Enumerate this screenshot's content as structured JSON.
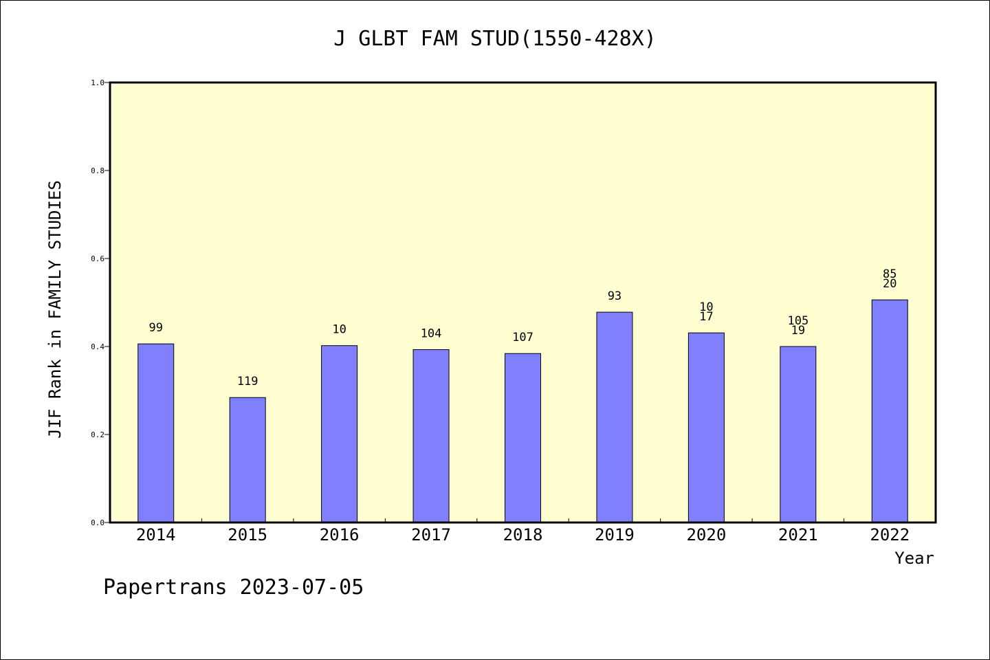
{
  "chart_data": {
    "type": "bar",
    "title": "J GLBT FAM STUD(1550-428X)",
    "xlabel": "Year",
    "ylabel": "JIF Rank in FAMILY STUDIES",
    "ylim": [
      0,
      1.0
    ],
    "yticks": [
      "0.0",
      "0.2",
      "0.4",
      "0.6",
      "0.8",
      "1.0"
    ],
    "categories": [
      "2014",
      "2015",
      "2016",
      "2017",
      "2018",
      "2019",
      "2020",
      "2021",
      "2022"
    ],
    "values": [
      0.406,
      0.284,
      0.402,
      0.393,
      0.384,
      0.478,
      0.431,
      0.4,
      0.506
    ],
    "labels": [
      [
        "99"
      ],
      [
        "119"
      ],
      [
        "10"
      ],
      [
        "104"
      ],
      [
        "107"
      ],
      [
        "93"
      ],
      [
        "10",
        "17"
      ],
      [
        "105",
        "19"
      ],
      [
        "85",
        "20"
      ]
    ],
    "grid": false,
    "colors": {
      "plot_background": "#ffffd2",
      "bar_fill": "#8080ff",
      "bar_stroke": "#000000"
    }
  },
  "footer": {
    "credit": "Papertrans 2023-07-05"
  }
}
